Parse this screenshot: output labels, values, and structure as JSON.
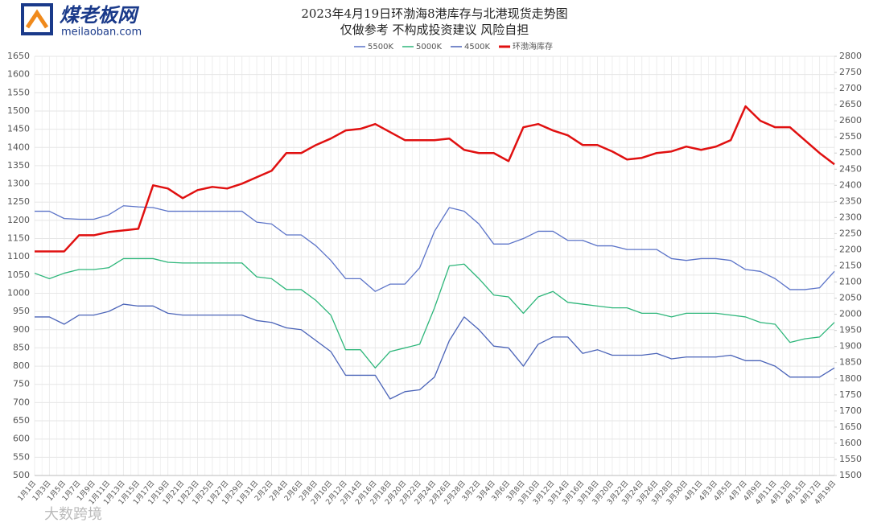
{
  "brand": {
    "name": "煤老板网",
    "url": "meilaoban.com"
  },
  "watermark": "大数跨境",
  "chart_data": {
    "type": "line",
    "title": "2023年4月19日环渤海8港库存与北港现货走势图",
    "subtitle": "仅做参考 不构成投资建议 风险自担",
    "categories": [
      "1月1日",
      "1月3日",
      "1月5日",
      "1月7日",
      "1月9日",
      "1月11日",
      "1月13日",
      "1月15日",
      "1月17日",
      "1月19日",
      "1月21日",
      "1月23日",
      "1月25日",
      "1月27日",
      "1月29日",
      "1月31日",
      "2月2日",
      "2月4日",
      "2月6日",
      "2月8日",
      "2月10日",
      "2月12日",
      "2月14日",
      "2月16日",
      "2月18日",
      "2月20日",
      "2月22日",
      "2月24日",
      "2月26日",
      "2月28日",
      "3月2日",
      "3月4日",
      "3月6日",
      "3月8日",
      "3月10日",
      "3月12日",
      "3月14日",
      "3月16日",
      "3月18日",
      "3月20日",
      "3月22日",
      "3月24日",
      "3月26日",
      "3月28日",
      "3月30日",
      "4月1日",
      "4月3日",
      "4月5日",
      "4月7日",
      "4月9日",
      "4月11日",
      "4月13日",
      "4月15日",
      "4月17日",
      "4月19日"
    ],
    "series": [
      {
        "name": "5500K",
        "color": "#5b73c8",
        "values": [
          1225,
          1225,
          1205,
          1203,
          1203,
          1215,
          1240,
          1237,
          1235,
          1225,
          1225,
          1225,
          1225,
          1225,
          1225,
          1195,
          1190,
          1160,
          1160,
          1130,
          1090,
          1040,
          1040,
          1005,
          1025,
          1025,
          1070,
          1170,
          1235,
          1225,
          1190,
          1135,
          1135,
          1150,
          1170,
          1170,
          1145,
          1145,
          1130,
          1130,
          1120,
          1120,
          1120,
          1095,
          1090,
          1095,
          1095,
          1090,
          1065,
          1060,
          1040,
          1010,
          1010,
          1015,
          1060
        ]
      },
      {
        "name": "5000K",
        "color": "#2db67a",
        "values": [
          1055,
          1040,
          1055,
          1065,
          1065,
          1070,
          1095,
          1095,
          1095,
          1085,
          1083,
          1083,
          1083,
          1083,
          1083,
          1045,
          1040,
          1010,
          1010,
          980,
          940,
          845,
          845,
          795,
          840,
          850,
          860,
          960,
          1075,
          1080,
          1040,
          995,
          990,
          945,
          990,
          1005,
          975,
          970,
          965,
          960,
          960,
          945,
          945,
          935,
          945,
          945,
          945,
          940,
          935,
          920,
          915,
          865,
          875,
          880,
          920
        ]
      },
      {
        "name": "4500K",
        "color": "#4a63b8",
        "values": [
          935,
          935,
          915,
          940,
          940,
          950,
          970,
          965,
          965,
          945,
          940,
          940,
          940,
          940,
          940,
          925,
          920,
          905,
          900,
          870,
          840,
          775,
          775,
          775,
          710,
          730,
          735,
          770,
          870,
          935,
          900,
          855,
          850,
          800,
          860,
          880,
          880,
          835,
          845,
          830,
          830,
          830,
          835,
          820,
          825,
          825,
          825,
          830,
          815,
          815,
          800,
          770,
          770,
          770,
          795
        ]
      },
      {
        "name": "环渤海库存",
        "color": "#e01010",
        "axis": "y2",
        "values": [
          2195,
          2195,
          2195,
          2245,
          2245,
          2255,
          2260,
          2265,
          2400,
          2390,
          2360,
          2385,
          2395,
          2390,
          2405,
          2425,
          2445,
          2500,
          2500,
          2525,
          2545,
          2570,
          2575,
          2590,
          2565,
          2540,
          2540,
          2540,
          2545,
          2510,
          2500,
          2500,
          2475,
          2580,
          2590,
          2570,
          2555,
          2525,
          2525,
          2505,
          2480,
          2485,
          2500,
          2505,
          2520,
          2510,
          2520,
          2540,
          2645,
          2600,
          2580,
          2580,
          2540,
          2500,
          2465
        ]
      }
    ],
    "ylim": [
      500,
      1650
    ],
    "yticks": [
      500,
      550,
      600,
      650,
      700,
      750,
      800,
      850,
      900,
      950,
      1000,
      1050,
      1100,
      1150,
      1200,
      1250,
      1300,
      1350,
      1400,
      1450,
      1500,
      1550,
      1600,
      1650
    ],
    "y2lim": [
      1500,
      2800
    ],
    "y2ticks": [
      1500,
      1550,
      1600,
      1650,
      1700,
      1750,
      1800,
      1850,
      1900,
      1950,
      2000,
      2050,
      2100,
      2150,
      2200,
      2250,
      2300,
      2350,
      2400,
      2450,
      2500,
      2550,
      2600,
      2650,
      2700,
      2750,
      2800
    ],
    "grid": true,
    "legend": "top"
  }
}
